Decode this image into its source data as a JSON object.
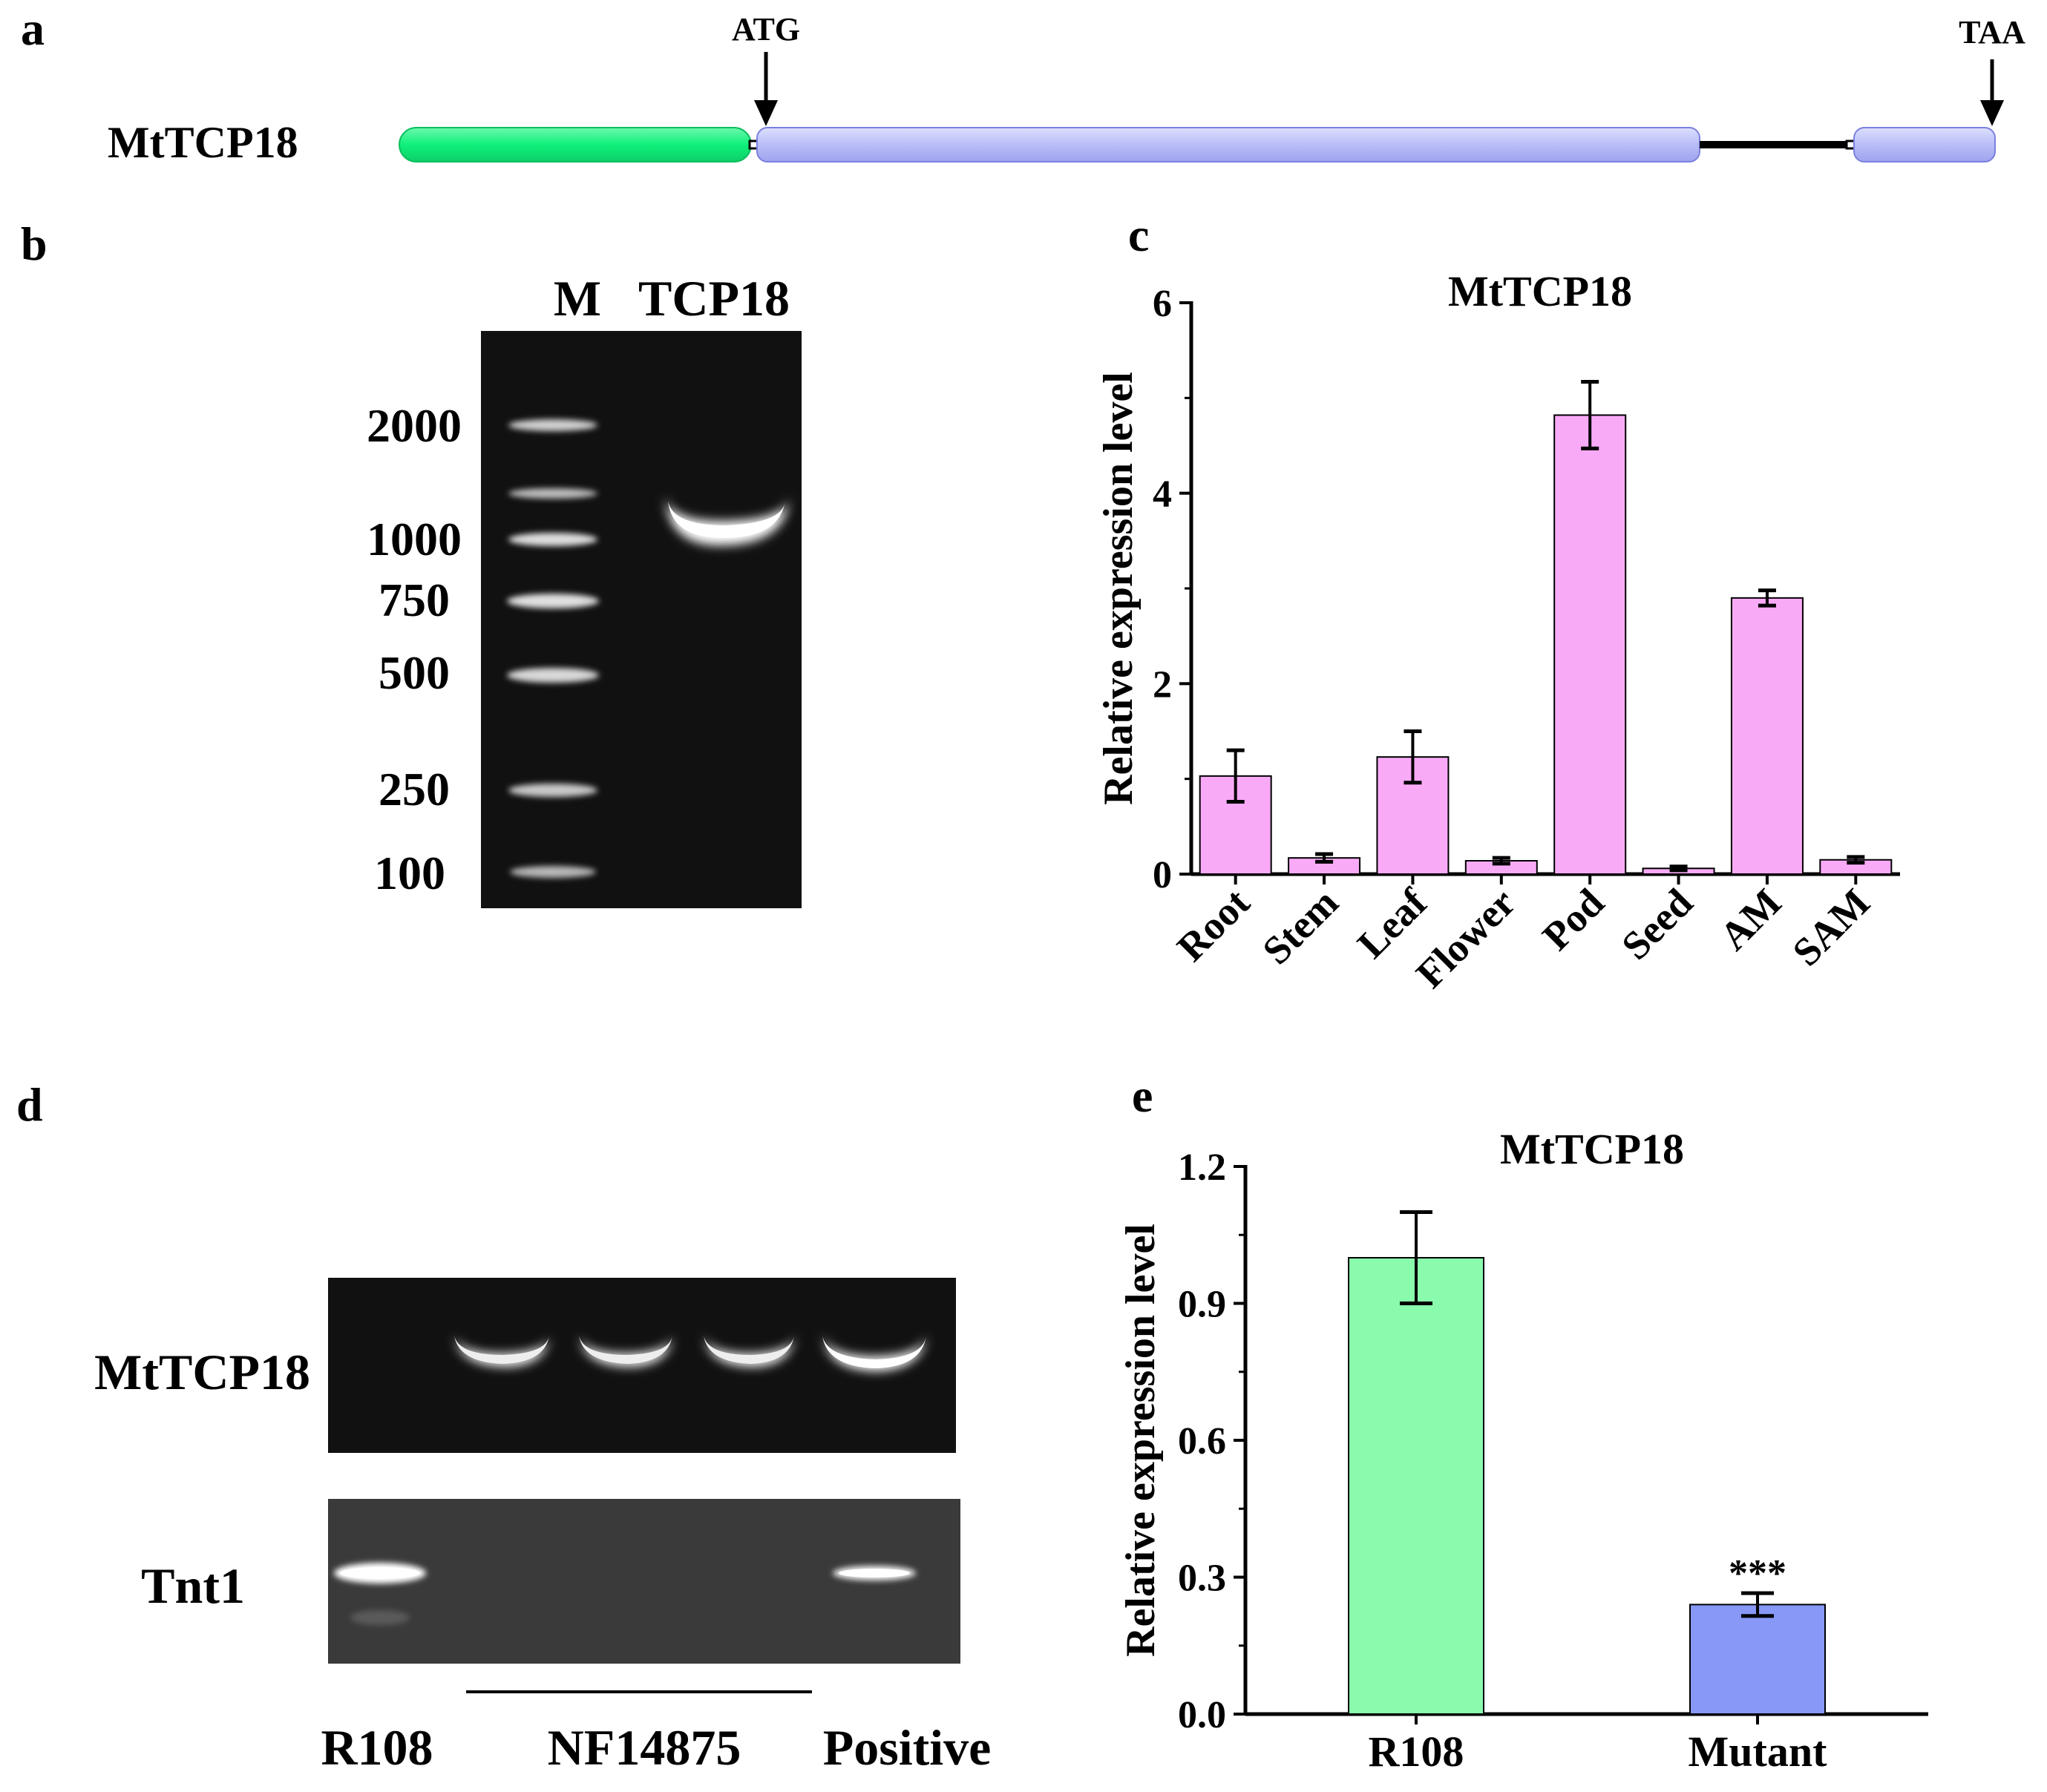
{
  "panels": {
    "a": {
      "letter": "a",
      "gene_label": "MtTCP18",
      "start_codon": "ATG",
      "stop_codon": "TAA",
      "colors": {
        "utr": "#10f07a",
        "exon": "#b9bdf8",
        "intron": "#000000"
      }
    },
    "b": {
      "letter": "b",
      "lane_marker": "M",
      "lane_sample": "TCP18",
      "ladder_sizes": [
        "2000",
        "1000",
        "750",
        "500",
        "250",
        "100"
      ]
    },
    "c": {
      "letter": "c"
    },
    "d": {
      "letter": "d",
      "gel1_label": "MtTCP18",
      "gel2_label": "Tnt1",
      "lane_labels": [
        "R108",
        "NF14875",
        "Positive"
      ]
    },
    "e": {
      "letter": "e"
    }
  },
  "chart_data": [
    {
      "panel": "c",
      "type": "bar",
      "title": "MtTCP18",
      "ylabel": "Relative expression level",
      "xlabel": "",
      "categories": [
        "Root",
        "Stem",
        "Leaf",
        "Flower",
        "Pod",
        "Seed",
        "AM",
        "SAM"
      ],
      "values": [
        1.03,
        0.17,
        1.23,
        0.14,
        4.82,
        0.06,
        2.9,
        0.15
      ],
      "errors": [
        0.27,
        0.04,
        0.27,
        0.03,
        0.35,
        0.02,
        0.08,
        0.03
      ],
      "ylim": [
        0,
        6
      ],
      "yticks": [
        "0",
        "2",
        "4",
        "6"
      ],
      "bar_color": "#f9aaf7",
      "grid": false
    },
    {
      "panel": "e",
      "type": "bar",
      "title": "MtTCP18",
      "ylabel": "Relative expression level",
      "xlabel": "",
      "categories": [
        "R108",
        "Mutant"
      ],
      "values": [
        1.0,
        0.24
      ],
      "errors": [
        0.1,
        0.025
      ],
      "bar_colors": [
        "#8afaad",
        "#8798f7"
      ],
      "annotations": [
        "",
        "***"
      ],
      "ylim": [
        0,
        1.2
      ],
      "yticks": [
        "0.0",
        "0.3",
        "0.6",
        "0.9",
        "1.2"
      ],
      "grid": false
    }
  ]
}
